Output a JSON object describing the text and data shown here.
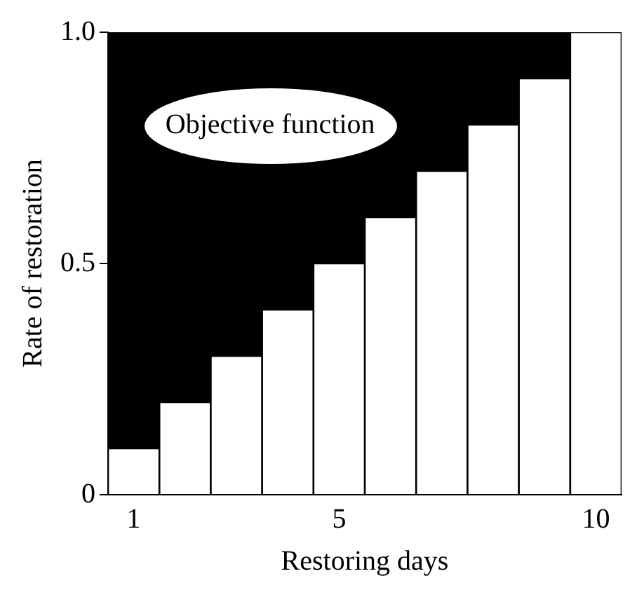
{
  "chart_data": {
    "type": "bar",
    "xlabel": "Restoring days",
    "ylabel": "Rate of restoration",
    "categories": [
      "1",
      null,
      null,
      null,
      "5",
      null,
      null,
      null,
      null,
      "10"
    ],
    "values": [
      0.1,
      0.2,
      0.3,
      0.4,
      0.5,
      0.6,
      0.7,
      0.8,
      0.9,
      1.0
    ],
    "color": "#ffffff",
    "ylim": [
      0,
      1
    ],
    "yticks": [
      0,
      {
        "value": 0.5,
        "label": "0.5"
      },
      {
        "value": 1,
        "label": "1.0"
      }
    ],
    "grid": false,
    "legend": false,
    "annotations": [
      "Objective function"
    ]
  }
}
